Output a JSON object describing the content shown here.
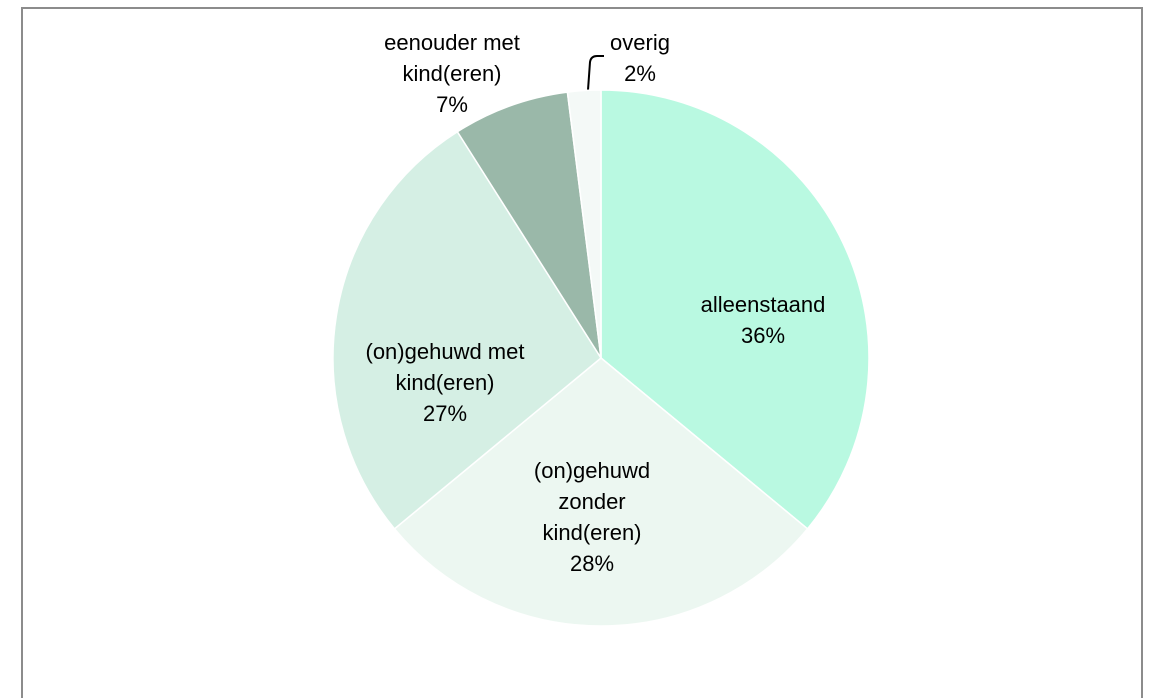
{
  "chart_data": {
    "type": "pie",
    "categories": [
      "alleenstaand",
      "(on)gehuwd\nzonder\nkind(eren)",
      "(on)gehuwd met\nkind(eren)",
      "eenouder met\nkind(eren)",
      "overig"
    ],
    "values": [
      36,
      28,
      27,
      7,
      2
    ],
    "value_labels": [
      "36%",
      "28%",
      "27%",
      "7%",
      "2%"
    ],
    "colors": [
      "#b9f9e1",
      "#ecf7f1",
      "#d5efe4",
      "#9ab8a9",
      "#f4f9f7"
    ]
  }
}
